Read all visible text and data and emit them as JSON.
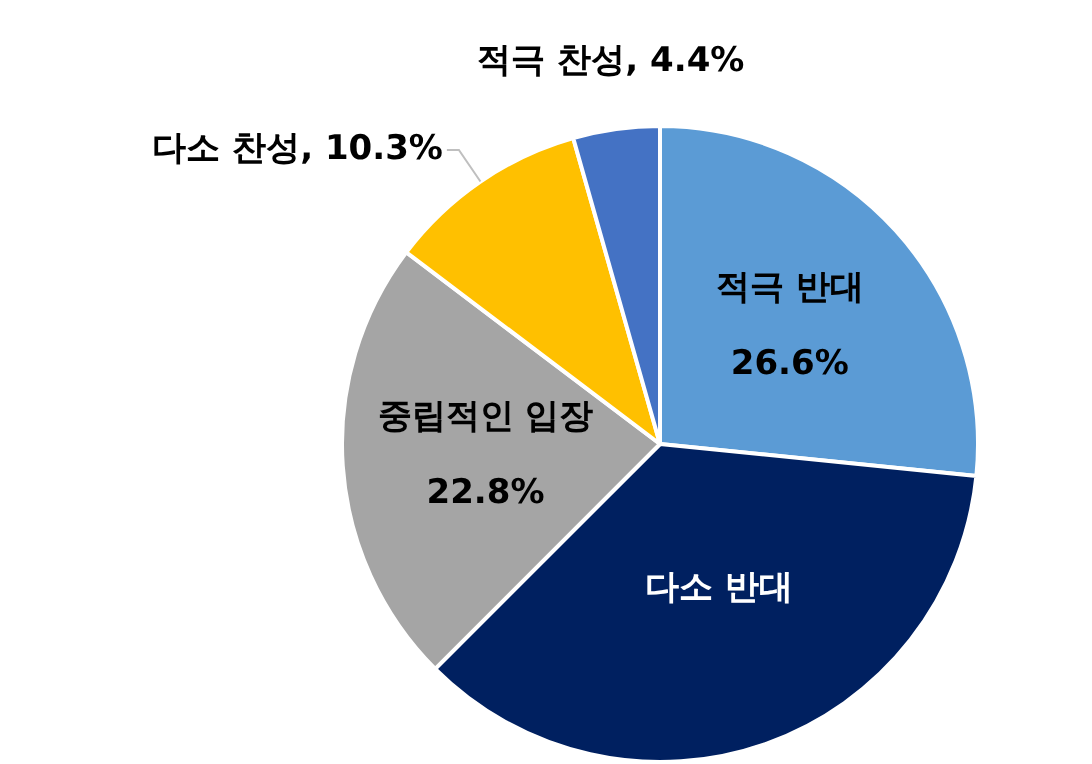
{
  "chart_data": {
    "type": "pie",
    "categories": [
      "적극 반대",
      "다소 반대",
      "중립적인 입장",
      "다소 찬성",
      "적극 찬성"
    ],
    "values": [
      26.6,
      35.9,
      22.8,
      10.3,
      4.4
    ],
    "colors": [
      "#5b9bd5",
      "#002060",
      "#a5a5a5",
      "#ffc000",
      "#4472c4"
    ],
    "value_labels": [
      "26.6%",
      null,
      "22.8%",
      "10.3%",
      "4.4%"
    ],
    "legend": false
  }
}
